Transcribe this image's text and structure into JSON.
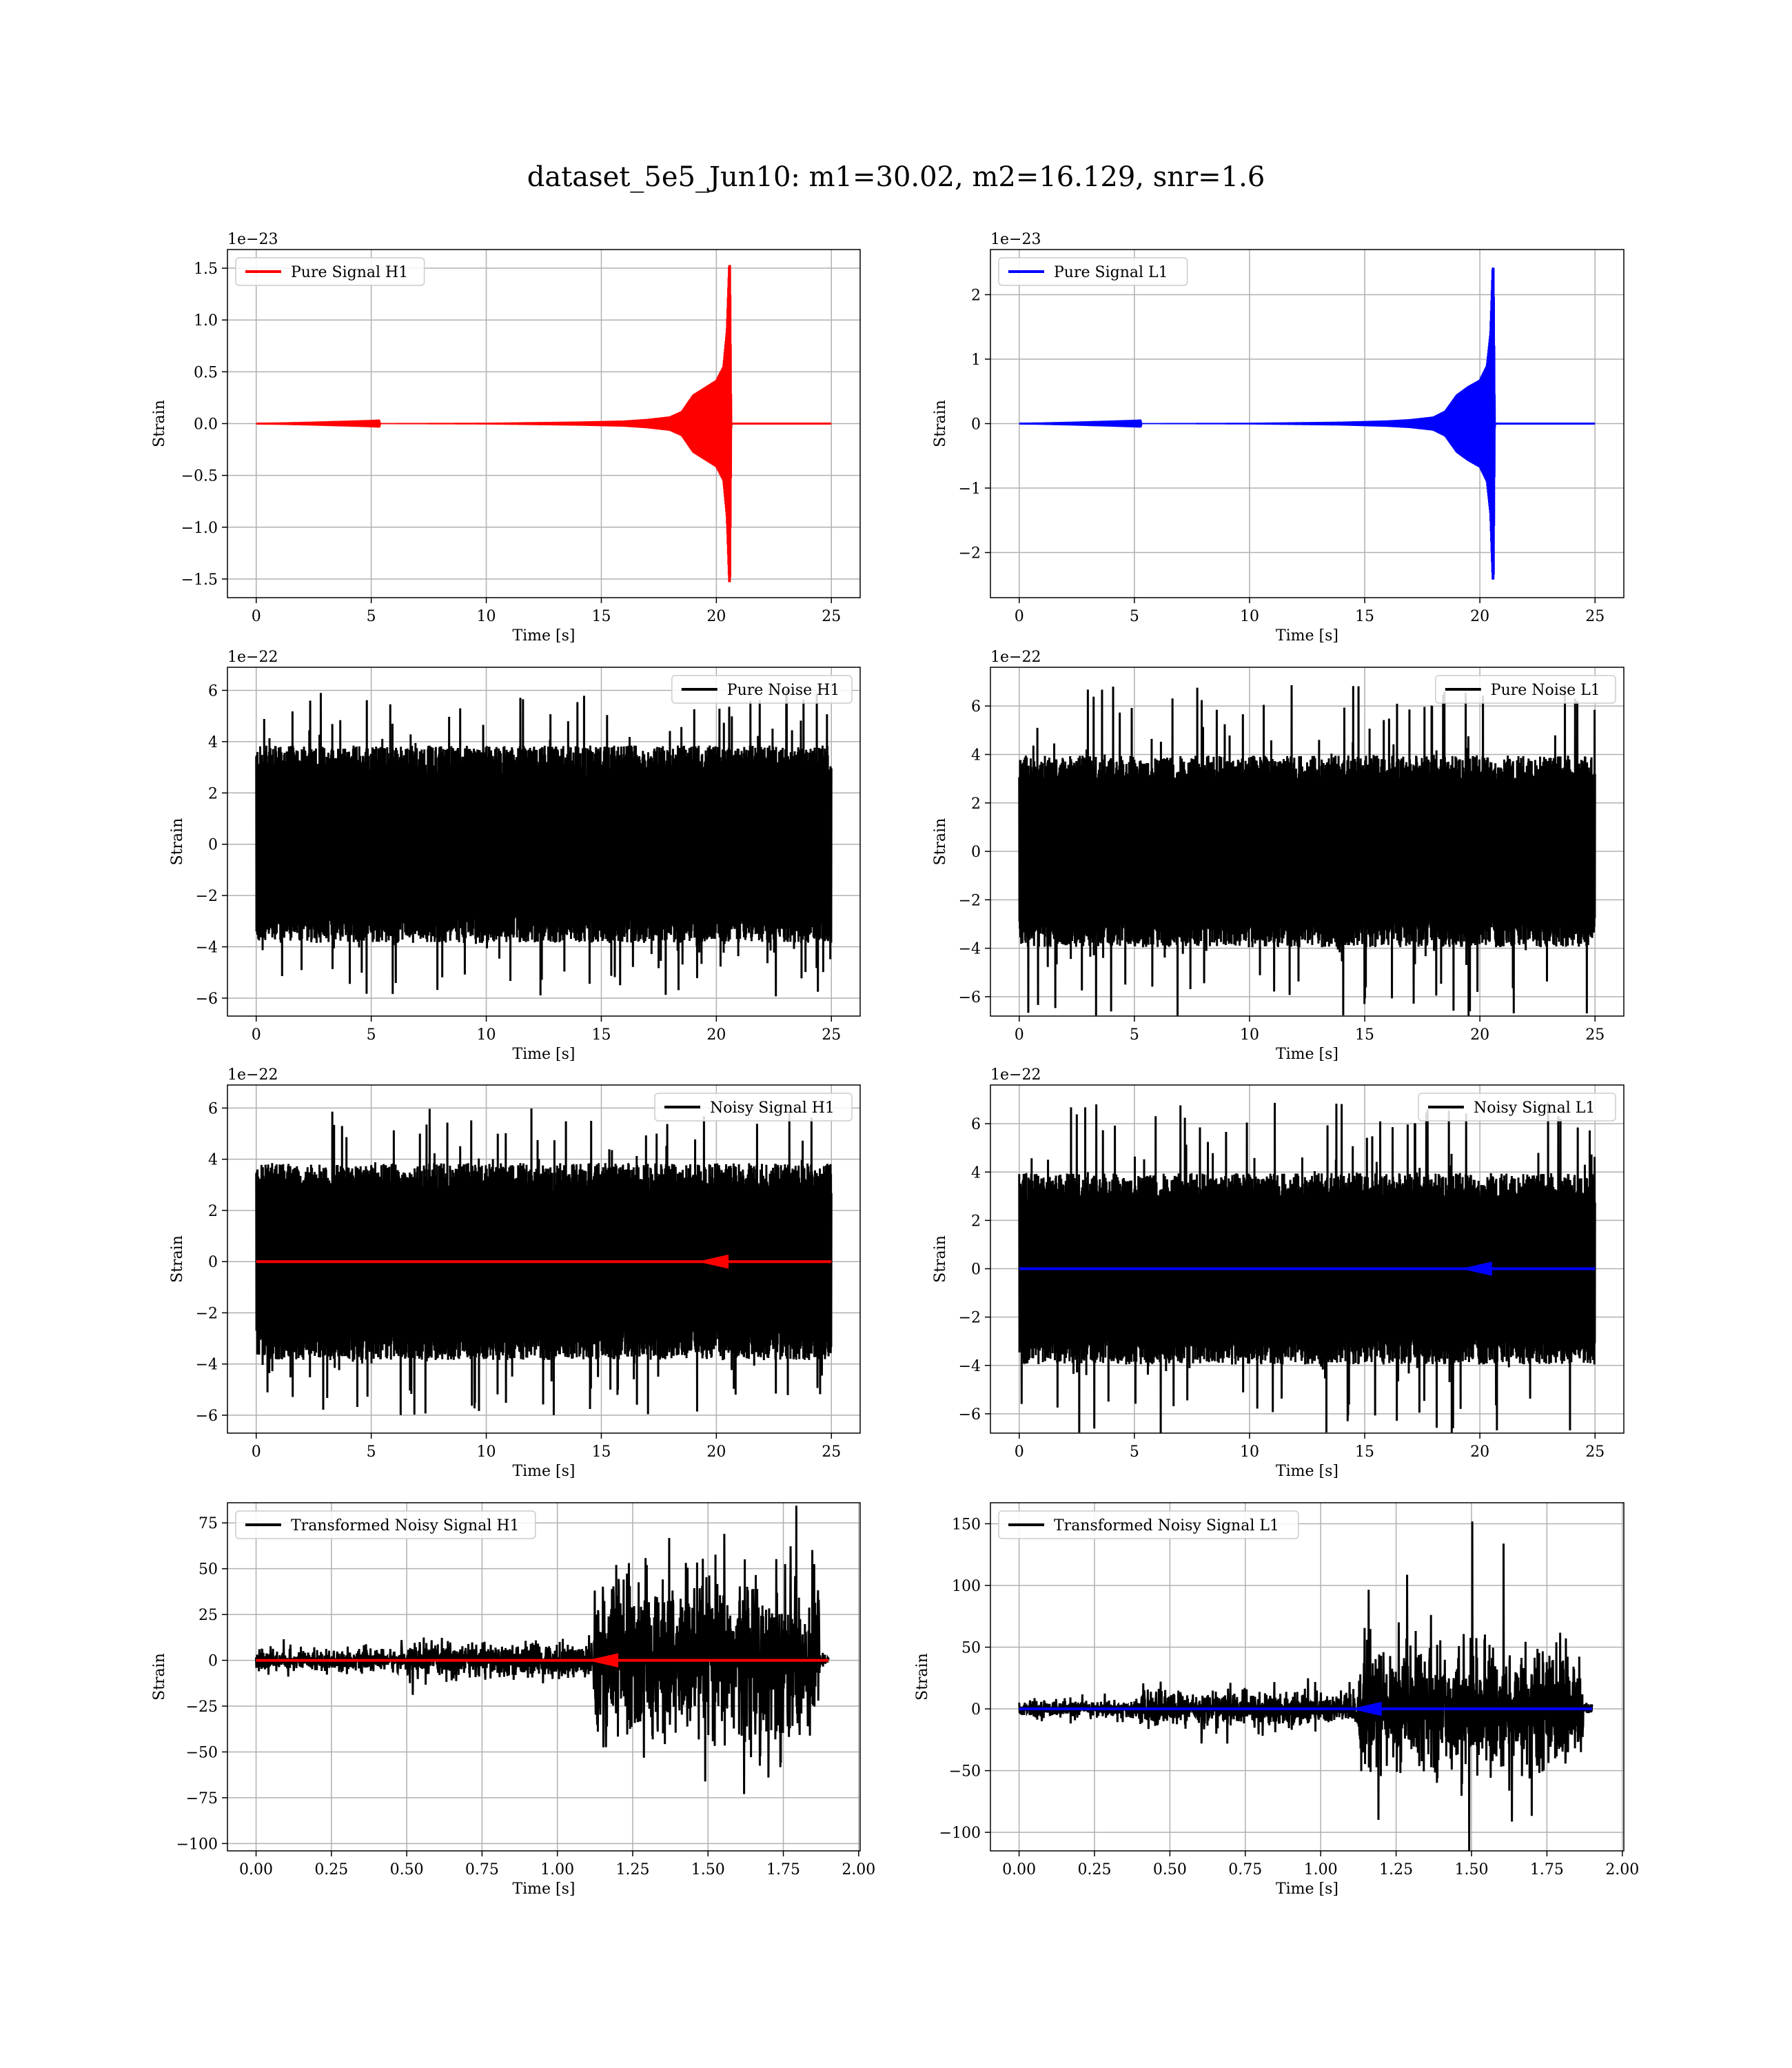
{
  "figure": {
    "title": "dataset_5e5_Jun10: m1=30.02, m2=16.129, snr=1.6"
  },
  "colors": {
    "h1_signal": "#ff0000",
    "l1_signal": "#0000ff",
    "noise": "#000000",
    "grid": "#b0b0b0"
  },
  "chart_data": [
    {
      "type": "line",
      "panel": "row1-left",
      "xlabel": "Time [s]",
      "ylabel": "Strain",
      "offset_label": "1e−23",
      "legend": {
        "entries": [
          "Pure Signal H1"
        ],
        "placement": "top-left"
      },
      "grid": true,
      "xlim": [
        -1.25,
        26.25
      ],
      "ylim": [
        -1.68,
        1.68
      ],
      "xticks": [
        0,
        5,
        10,
        15,
        20,
        25
      ],
      "xtick_labels": [
        "0",
        "5",
        "10",
        "15",
        "20",
        "25"
      ],
      "yticks": [
        -1.5,
        -1.0,
        -0.5,
        0.0,
        0.5,
        1.0,
        1.5
      ],
      "ytick_labels": [
        "−1.5",
        "−1.0",
        "−0.5",
        "0.0",
        "0.5",
        "1.0",
        "1.5"
      ],
      "series": [
        {
          "name": "Pure Signal H1",
          "color": "#ff0000",
          "kind": "chirp",
          "x": [
            0,
            5,
            10,
            14,
            16,
            17,
            18,
            18.5,
            19,
            19.5,
            20,
            20.3,
            20.45,
            20.55,
            20.6,
            20.65,
            25
          ],
          "amplitude": [
            0.0,
            0.003,
            0.008,
            0.02,
            0.03,
            0.045,
            0.07,
            0.12,
            0.28,
            0.35,
            0.42,
            0.55,
            0.9,
            1.53,
            1.53,
            0.0,
            0.0
          ]
        }
      ]
    },
    {
      "type": "line",
      "panel": "row1-right",
      "xlabel": "Time [s]",
      "ylabel": "Strain",
      "offset_label": "1e−23",
      "legend": {
        "entries": [
          "Pure Signal L1"
        ],
        "placement": "top-left"
      },
      "grid": true,
      "xlim": [
        -1.25,
        26.25
      ],
      "ylim": [
        -2.7,
        2.7
      ],
      "xticks": [
        0,
        5,
        10,
        15,
        20,
        25
      ],
      "xtick_labels": [
        "0",
        "5",
        "10",
        "15",
        "20",
        "25"
      ],
      "yticks": [
        -2,
        -1,
        0,
        1,
        2
      ],
      "ytick_labels": [
        "−2",
        "−1",
        "0",
        "1",
        "2"
      ],
      "series": [
        {
          "name": "Pure Signal L1",
          "color": "#0000ff",
          "kind": "chirp",
          "x": [
            0,
            5,
            10,
            14,
            16,
            17,
            18,
            18.5,
            19,
            19.5,
            20,
            20.3,
            20.45,
            20.55,
            20.6,
            20.65,
            25
          ],
          "amplitude": [
            0.0,
            0.005,
            0.012,
            0.03,
            0.05,
            0.07,
            0.11,
            0.2,
            0.45,
            0.58,
            0.68,
            0.9,
            1.4,
            2.42,
            2.42,
            0.0,
            0.0
          ]
        }
      ]
    },
    {
      "type": "line",
      "panel": "row2-left",
      "xlabel": "Time [s]",
      "ylabel": "Strain",
      "offset_label": "1e−22",
      "legend": {
        "entries": [
          "Pure Noise H1"
        ],
        "placement": "top-right"
      },
      "grid": true,
      "xlim": [
        -1.25,
        26.25
      ],
      "ylim": [
        -6.7,
        6.9
      ],
      "xticks": [
        0,
        5,
        10,
        15,
        20,
        25
      ],
      "xtick_labels": [
        "0",
        "5",
        "10",
        "15",
        "20",
        "25"
      ],
      "yticks": [
        -6,
        -4,
        -2,
        0,
        2,
        4,
        6
      ],
      "ytick_labels": [
        "−6",
        "−4",
        "−2",
        "0",
        "2",
        "4",
        "6"
      ],
      "series": [
        {
          "name": "Pure Noise H1",
          "color": "#000000",
          "kind": "noise",
          "x_range": [
            0,
            25
          ],
          "band": 3.5,
          "peak": 6.0
        }
      ]
    },
    {
      "type": "line",
      "panel": "row2-right",
      "xlabel": "Time [s]",
      "ylabel": "Strain",
      "offset_label": "1e−22",
      "legend": {
        "entries": [
          "Pure Noise L1"
        ],
        "placement": "top-right"
      },
      "grid": true,
      "xlim": [
        -1.25,
        26.25
      ],
      "ylim": [
        -6.8,
        7.6
      ],
      "xticks": [
        0,
        5,
        10,
        15,
        20,
        25
      ],
      "xtick_labels": [
        "0",
        "5",
        "10",
        "15",
        "20",
        "25"
      ],
      "yticks": [
        -6,
        -4,
        -2,
        0,
        2,
        4,
        6
      ],
      "ytick_labels": [
        "−6",
        "−4",
        "−2",
        "0",
        "2",
        "4",
        "6"
      ],
      "series": [
        {
          "name": "Pure Noise L1",
          "color": "#000000",
          "kind": "noise",
          "x_range": [
            0,
            25
          ],
          "band": 3.6,
          "peak": 6.9
        }
      ]
    },
    {
      "type": "line",
      "panel": "row3-left",
      "xlabel": "Time [s]",
      "ylabel": "Strain",
      "offset_label": "1e−22",
      "legend": {
        "entries": [
          "Noisy Signal H1"
        ],
        "placement": "top-right"
      },
      "grid": true,
      "xlim": [
        -1.25,
        26.25
      ],
      "ylim": [
        -6.7,
        6.9
      ],
      "xticks": [
        0,
        5,
        10,
        15,
        20,
        25
      ],
      "xtick_labels": [
        "0",
        "5",
        "10",
        "15",
        "20",
        "25"
      ],
      "yticks": [
        -6,
        -4,
        -2,
        0,
        2,
        4,
        6
      ],
      "ytick_labels": [
        "−6",
        "−4",
        "−2",
        "0",
        "2",
        "4",
        "6"
      ],
      "series": [
        {
          "name": "Noisy Signal H1",
          "color": "#000000",
          "kind": "noise",
          "x_range": [
            0,
            25
          ],
          "band": 3.5,
          "peak": 6.0
        },
        {
          "color": "#ff0000",
          "kind": "flatline",
          "x_range": [
            0,
            25
          ],
          "value": 0,
          "chirp_at": 20.5
        }
      ]
    },
    {
      "type": "line",
      "panel": "row3-right",
      "xlabel": "Time [s]",
      "ylabel": "Strain",
      "offset_label": "1e−22",
      "legend": {
        "entries": [
          "Noisy Signal L1"
        ],
        "placement": "top-right"
      },
      "grid": true,
      "xlim": [
        -1.25,
        26.25
      ],
      "ylim": [
        -6.8,
        7.6
      ],
      "xticks": [
        0,
        5,
        10,
        15,
        20,
        25
      ],
      "xtick_labels": [
        "0",
        "5",
        "10",
        "15",
        "20",
        "25"
      ],
      "yticks": [
        -6,
        -4,
        -2,
        0,
        2,
        4,
        6
      ],
      "ytick_labels": [
        "−6",
        "−4",
        "−2",
        "0",
        "2",
        "4",
        "6"
      ],
      "series": [
        {
          "name": "Noisy Signal L1",
          "color": "#000000",
          "kind": "noise",
          "x_range": [
            0,
            25
          ],
          "band": 3.6,
          "peak": 6.9
        },
        {
          "color": "#0000ff",
          "kind": "flatline",
          "x_range": [
            0,
            25
          ],
          "value": 0,
          "chirp_at": 20.5
        }
      ]
    },
    {
      "type": "line",
      "panel": "row4-left",
      "xlabel": "Time [s]",
      "ylabel": "Strain",
      "offset_label": "",
      "legend": {
        "entries": [
          "Transformed Noisy Signal H1"
        ],
        "placement": "top-left"
      },
      "grid": true,
      "xlim": [
        -0.095,
        2.005
      ],
      "ylim": [
        -104,
        86
      ],
      "xticks": [
        0.0,
        0.25,
        0.5,
        0.75,
        1.0,
        1.25,
        1.5,
        1.75,
        2.0
      ],
      "xtick_labels": [
        "0.00",
        "0.25",
        "0.50",
        "0.75",
        "1.00",
        "1.25",
        "1.50",
        "1.75",
        "2.00"
      ],
      "yticks": [
        -100,
        -75,
        -50,
        -25,
        0,
        25,
        50,
        75
      ],
      "ytick_labels": [
        "−100",
        "−75",
        "−50",
        "−25",
        "0",
        "25",
        "50",
        "75"
      ],
      "series": [
        {
          "name": "Transformed Noisy Signal H1",
          "color": "#000000",
          "kind": "segmented-noise",
          "x_range": [
            0,
            1.9
          ],
          "segments": [
            {
              "x": [
                0.0,
                0.5
              ],
              "band": 5,
              "peak": 12
            },
            {
              "x": [
                0.5,
                1.12
              ],
              "band": 8,
              "peak": 20
            },
            {
              "x": [
                1.12,
                1.87
              ],
              "band": 40,
              "peak": 90
            },
            {
              "x": [
                1.87,
                1.9
              ],
              "band": 3,
              "peak": 5
            }
          ]
        },
        {
          "color": "#ff0000",
          "kind": "flatline",
          "x_range": [
            0,
            1.9
          ],
          "value": 0,
          "chirp_at": 1.2
        }
      ]
    },
    {
      "type": "line",
      "panel": "row4-right",
      "xlabel": "Time [s]",
      "ylabel": "Strain",
      "offset_label": "",
      "legend": {
        "entries": [
          "Transformed Noisy Signal L1"
        ],
        "placement": "top-left"
      },
      "grid": true,
      "xlim": [
        -0.095,
        2.005
      ],
      "ylim": [
        -115,
        167
      ],
      "xticks": [
        0.0,
        0.25,
        0.5,
        0.75,
        1.0,
        1.25,
        1.5,
        1.75,
        2.0
      ],
      "xtick_labels": [
        "0.00",
        "0.25",
        "0.50",
        "0.75",
        "1.00",
        "1.25",
        "1.50",
        "1.75",
        "2.00"
      ],
      "yticks": [
        -100,
        -50,
        0,
        50,
        100,
        150
      ],
      "ytick_labels": [
        "−100",
        "−50",
        "0",
        "50",
        "100",
        "150"
      ],
      "series": [
        {
          "name": "Transformed Noisy Signal L1",
          "color": "#000000",
          "kind": "segmented-noise",
          "x_range": [
            0,
            1.9
          ],
          "segments": [
            {
              "x": [
                0.0,
                0.4
              ],
              "band": 6,
              "peak": 14
            },
            {
              "x": [
                0.4,
                1.12
              ],
              "band": 12,
              "peak": 30
            },
            {
              "x": [
                1.12,
                1.87
              ],
              "band": 40,
              "peak": 152
            },
            {
              "x": [
                1.87,
                1.9
              ],
              "band": 4,
              "peak": 6
            }
          ]
        },
        {
          "color": "#0000ff",
          "kind": "flatline",
          "x_range": [
            0,
            1.9
          ],
          "value": 0,
          "chirp_at": 1.2
        }
      ]
    }
  ]
}
